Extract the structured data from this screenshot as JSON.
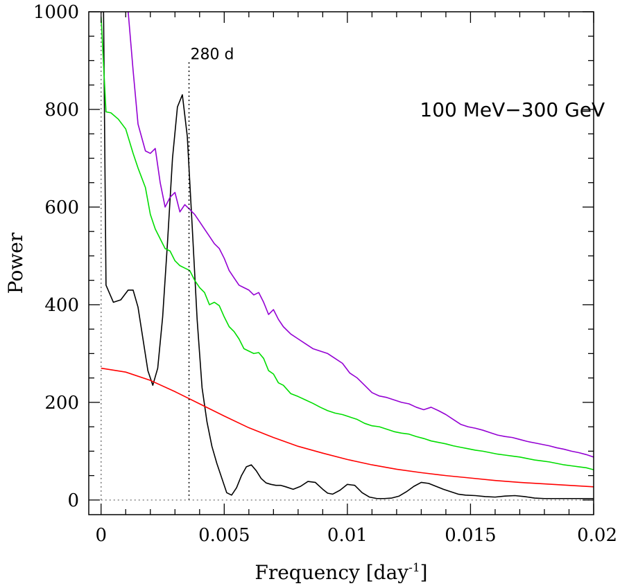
{
  "chart_data": {
    "type": "line",
    "xlabel": "Frequency [day",
    "xlabel_sup": "-1",
    "xlabel_end": "]",
    "ylabel": "Power",
    "xlim": [
      -0.0005,
      0.02
    ],
    "ylim": [
      -30,
      1000
    ],
    "xticks": [
      0,
      0.005,
      0.01,
      0.015,
      0.02
    ],
    "xtick_labels": [
      "0",
      "0.005",
      "0.01",
      "0.015",
      "0.02"
    ],
    "yticks": [
      0,
      200,
      400,
      600,
      800,
      1000
    ],
    "ytick_labels": [
      "0",
      "200",
      "400",
      "600",
      "800",
      "1000"
    ],
    "grid": false,
    "annotations": [
      {
        "text": "280 d",
        "x": 0.00357,
        "y": 900
      },
      {
        "text": "100 MeV−300 GeV",
        "x": 0.0167,
        "y": 800
      }
    ],
    "vlines": [
      {
        "x": 0,
        "y_from": 0,
        "y_to": 1000,
        "style": "dotted",
        "color": "#777777"
      },
      {
        "x": 0.00357,
        "y_from": 0,
        "y_to": 900,
        "style": "dotted",
        "color": "#000000"
      }
    ],
    "hlines": [
      {
        "y": 0,
        "x_from": 0,
        "x_to": 0.02,
        "style": "dotted",
        "color": "#888888"
      }
    ],
    "series": [
      {
        "color": "#000000",
        "x": [
          0,
          0.0001,
          0.0002,
          0.0005,
          0.0008,
          0.0011,
          0.0013,
          0.0015,
          0.0017,
          0.0019,
          0.0021,
          0.0023,
          0.0025,
          0.0027,
          0.0029,
          0.0031,
          0.0033,
          0.0035,
          0.0037,
          0.0039,
          0.0041,
          0.0043,
          0.0045,
          0.0047,
          0.0049,
          0.0051,
          0.0053,
          0.0055,
          0.0057,
          0.0059,
          0.0061,
          0.0063,
          0.0065,
          0.0067,
          0.0069,
          0.0071,
          0.0073,
          0.0075,
          0.0078,
          0.0081,
          0.0084,
          0.0087,
          0.009,
          0.0092,
          0.0094,
          0.0097,
          0.01,
          0.0103,
          0.0106,
          0.0109,
          0.0112,
          0.0115,
          0.0118,
          0.0121,
          0.0124,
          0.0127,
          0.013,
          0.0133,
          0.0136,
          0.0139,
          0.0142,
          0.0145,
          0.0148,
          0.0152,
          0.0156,
          0.016,
          0.0164,
          0.0168,
          0.0172,
          0.0176,
          0.018,
          0.0184,
          0.0188,
          0.0192,
          0.0196,
          0.02
        ],
        "values": [
          1000,
          1000,
          440,
          405,
          410,
          430,
          430,
          395,
          330,
          265,
          235,
          270,
          375,
          530,
          700,
          805,
          830,
          745,
          560,
          370,
          230,
          160,
          110,
          75,
          45,
          15,
          10,
          25,
          50,
          68,
          72,
          60,
          44,
          35,
          32,
          30,
          30,
          27,
          22,
          28,
          38,
          36,
          22,
          14,
          12,
          20,
          32,
          30,
          15,
          6,
          3,
          3,
          4,
          8,
          17,
          28,
          36,
          34,
          28,
          22,
          17,
          12,
          10,
          9,
          7,
          6,
          8,
          9,
          7,
          4,
          3,
          3,
          3,
          3,
          3,
          3
        ]
      },
      {
        "color": "#ff0000",
        "x": [
          0,
          0.001,
          0.002,
          0.003,
          0.004,
          0.005,
          0.006,
          0.007,
          0.008,
          0.009,
          0.01,
          0.011,
          0.012,
          0.013,
          0.014,
          0.015,
          0.016,
          0.017,
          0.018,
          0.019,
          0.02
        ],
        "values": [
          270,
          262,
          245,
          222,
          197,
          172,
          148,
          128,
          110,
          96,
          83,
          72,
          63,
          56,
          50,
          45,
          40,
          36,
          33,
          30,
          27
        ]
      },
      {
        "color": "#00dd00",
        "x": [
          0,
          0.0002,
          0.0004,
          0.0007,
          0.001,
          0.0013,
          0.0015,
          0.0018,
          0.002,
          0.0022,
          0.0024,
          0.0026,
          0.0028,
          0.003,
          0.0032,
          0.0034,
          0.0036,
          0.0038,
          0.004,
          0.0042,
          0.0044,
          0.0046,
          0.0048,
          0.005,
          0.0052,
          0.0054,
          0.0056,
          0.0058,
          0.006,
          0.0062,
          0.0064,
          0.0066,
          0.0068,
          0.007,
          0.0072,
          0.0074,
          0.0077,
          0.008,
          0.0083,
          0.0086,
          0.0089,
          0.0092,
          0.0095,
          0.0098,
          0.0101,
          0.0104,
          0.0107,
          0.011,
          0.0113,
          0.0116,
          0.0119,
          0.0122,
          0.0125,
          0.0128,
          0.0131,
          0.0134,
          0.0137,
          0.014,
          0.0143,
          0.0146,
          0.0149,
          0.0152,
          0.0155,
          0.0158,
          0.0161,
          0.0164,
          0.0167,
          0.017,
          0.0173,
          0.0176,
          0.0179,
          0.0182,
          0.0185,
          0.0188,
          0.0191,
          0.0194,
          0.0197,
          0.02
        ],
        "values": [
          990,
          795,
          793,
          780,
          760,
          710,
          680,
          640,
          585,
          555,
          535,
          515,
          510,
          490,
          480,
          475,
          470,
          450,
          435,
          425,
          400,
          405,
          398,
          375,
          355,
          345,
          330,
          310,
          305,
          300,
          302,
          290,
          265,
          258,
          240,
          235,
          218,
          212,
          205,
          198,
          190,
          183,
          178,
          175,
          170,
          165,
          157,
          152,
          150,
          145,
          140,
          137,
          135,
          130,
          126,
          121,
          118,
          115,
          111,
          108,
          105,
          102,
          100,
          97,
          94,
          92,
          90,
          88,
          85,
          82,
          80,
          78,
          75,
          72,
          70,
          68,
          66,
          62
        ]
      },
      {
        "color": "#9400d3",
        "x": [
          0.0011,
          0.0013,
          0.0015,
          0.0018,
          0.002,
          0.0022,
          0.0024,
          0.0026,
          0.0028,
          0.003,
          0.0032,
          0.0034,
          0.0036,
          0.0038,
          0.004,
          0.0042,
          0.0044,
          0.0046,
          0.0048,
          0.005,
          0.0052,
          0.0054,
          0.0056,
          0.0058,
          0.006,
          0.0062,
          0.0064,
          0.0066,
          0.0068,
          0.007,
          0.0072,
          0.0074,
          0.0077,
          0.008,
          0.0083,
          0.0086,
          0.0089,
          0.0092,
          0.0095,
          0.0098,
          0.0101,
          0.0104,
          0.0107,
          0.011,
          0.0113,
          0.0116,
          0.0119,
          0.0122,
          0.0125,
          0.0128,
          0.0131,
          0.0134,
          0.0137,
          0.014,
          0.0143,
          0.0146,
          0.0149,
          0.0152,
          0.0155,
          0.0158,
          0.0161,
          0.0164,
          0.0167,
          0.017,
          0.0173,
          0.0176,
          0.0179,
          0.0182,
          0.0185,
          0.0188,
          0.0191,
          0.0194,
          0.0197,
          0.02
        ],
        "values": [
          1000,
          880,
          770,
          715,
          710,
          720,
          650,
          600,
          620,
          630,
          590,
          605,
          595,
          585,
          570,
          555,
          540,
          525,
          515,
          495,
          470,
          455,
          440,
          435,
          430,
          420,
          425,
          405,
          380,
          390,
          370,
          355,
          340,
          330,
          320,
          310,
          305,
          300,
          290,
          280,
          260,
          250,
          235,
          220,
          213,
          210,
          205,
          200,
          197,
          190,
          185,
          190,
          183,
          175,
          165,
          155,
          150,
          147,
          143,
          138,
          133,
          130,
          128,
          124,
          120,
          117,
          114,
          111,
          107,
          104,
          100,
          97,
          93,
          88
        ]
      }
    ]
  }
}
